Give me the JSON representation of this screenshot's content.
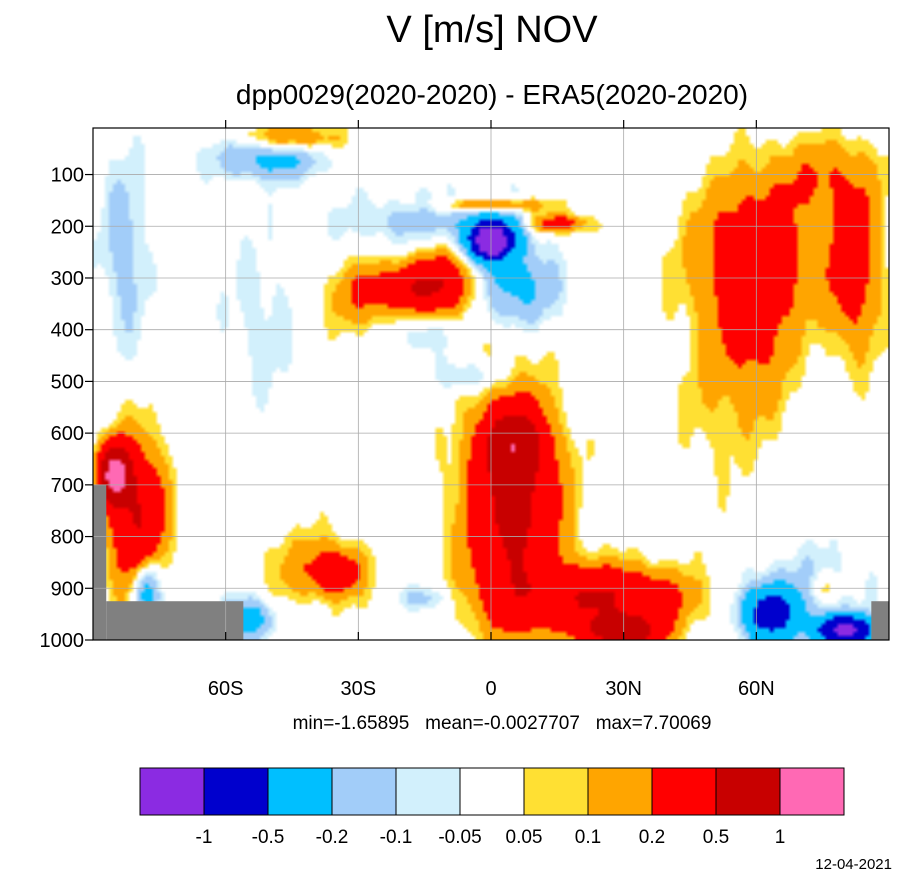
{
  "chart_data": {
    "type": "heatmap",
    "title": "V [m/s] NOV",
    "subtitle": "dpp0029(2020-2020) - ERA5(2020-2020)",
    "stats_text": "min=-1.65895   mean=-0.0027707   max=7.70069",
    "date_stamp": "12-04-2021",
    "x_tick_labels": [
      "60S",
      "30S",
      "0",
      "30N",
      "60N"
    ],
    "x_ticks": [
      -60,
      -30,
      0,
      30,
      60
    ],
    "y_tick_labels": [
      "100",
      "200",
      "300",
      "400",
      "500",
      "600",
      "700",
      "800",
      "900",
      "1000"
    ],
    "y_ticks": [
      100,
      200,
      300,
      400,
      500,
      600,
      700,
      800,
      900,
      1000
    ],
    "xlim": [
      -90,
      90
    ],
    "ylim": [
      1000,
      10
    ],
    "grid": true,
    "levels": [
      "-1",
      "-0.5",
      "-0.2",
      "-0.1",
      "-0.05",
      "0.05",
      "0.1",
      "0.2",
      "0.5",
      "1"
    ],
    "colors": [
      "#8b2be2",
      "#0000cd",
      "#00bfff",
      "#a2cdf9",
      "#d2f0fc",
      "#ffffff",
      "#ffe033",
      "#ffa500",
      "#ff0000",
      "#c80000",
      "#ff69b4"
    ],
    "missing_color": "#808080",
    "features": [
      {
        "kind": "blob",
        "lat": 0,
        "p": 220,
        "rlat": 8,
        "rp": 60,
        "v": -0.25
      },
      {
        "kind": "blob",
        "lat": 0,
        "p": 225,
        "rlat": 5,
        "rp": 35,
        "v": -0.7
      },
      {
        "kind": "blob",
        "lat": 0,
        "p": 230,
        "rlat": 3,
        "rp": 25,
        "v": -1.2
      },
      {
        "kind": "blob",
        "lat": 5,
        "p": 320,
        "rlat": 10,
        "rp": 70,
        "v": -0.25
      },
      {
        "kind": "blob",
        "lat": -15,
        "p": 190,
        "rlat": 18,
        "rp": 50,
        "v": -0.15
      },
      {
        "kind": "blob",
        "lat": -50,
        "p": 70,
        "rlat": 12,
        "rp": 40,
        "v": -0.25
      },
      {
        "kind": "blob",
        "lat": -83,
        "p": 250,
        "rlat": 5,
        "rp": 180,
        "v": -0.15
      },
      {
        "kind": "blob",
        "lat": -52,
        "p": 380,
        "rlat": 8,
        "rp": 160,
        "v": -0.08
      },
      {
        "kind": "blob",
        "lat": -5,
        "p": 490,
        "rlat": 7,
        "rp": 30,
        "v": -0.15
      },
      {
        "kind": "blob",
        "lat": -15,
        "p": 400,
        "rlat": 6,
        "rp": 45,
        "v": -0.12
      },
      {
        "kind": "blob",
        "lat": -17,
        "p": 320,
        "rlat": 10,
        "rp": 45,
        "v": 0.4
      },
      {
        "kind": "blob",
        "lat": -10,
        "p": 300,
        "rlat": 8,
        "rp": 80,
        "v": 0.25
      },
      {
        "kind": "blob",
        "lat": -30,
        "p": 340,
        "rlat": 7,
        "rp": 70,
        "v": 0.15
      },
      {
        "kind": "blob",
        "lat": 0,
        "p": 160,
        "rlat": 12,
        "rp": 15,
        "v": 0.3
      },
      {
        "kind": "blob",
        "lat": 15,
        "p": 195,
        "rlat": 7,
        "rp": 18,
        "v": 0.3
      },
      {
        "kind": "blob",
        "lat": -45,
        "p": 30,
        "rlat": 10,
        "rp": 25,
        "v": 0.25
      },
      {
        "kind": "blob",
        "lat": 60,
        "p": 250,
        "rlat": 14,
        "rp": 140,
        "v": 0.3
      },
      {
        "kind": "blob",
        "lat": 60,
        "p": 400,
        "rlat": 8,
        "rp": 180,
        "v": 0.2
      },
      {
        "kind": "blob",
        "lat": 82,
        "p": 280,
        "rlat": 6,
        "rp": 160,
        "v": 0.3
      },
      {
        "kind": "blob",
        "lat": 75,
        "p": 100,
        "rlat": 12,
        "rp": 70,
        "v": 0.15
      },
      {
        "kind": "blob",
        "lat": 50,
        "p": 500,
        "rlat": 8,
        "rp": 200,
        "v": 0.08
      },
      {
        "kind": "blob",
        "lat": 5,
        "p": 750,
        "rlat": 10,
        "rp": 200,
        "v": 0.6
      },
      {
        "kind": "blob",
        "lat": 5,
        "p": 620,
        "rlat": 6,
        "rp": 60,
        "v": 0.6
      },
      {
        "kind": "blob",
        "lat": 25,
        "p": 920,
        "rlat": 18,
        "rp": 60,
        "v": 0.5
      },
      {
        "kind": "blob",
        "lat": 30,
        "p": 985,
        "rlat": 8,
        "rp": 30,
        "v": 0.7
      },
      {
        "kind": "blob",
        "lat": -40,
        "p": 860,
        "rlat": 12,
        "rp": 70,
        "v": 0.15
      },
      {
        "kind": "blob",
        "lat": -35,
        "p": 870,
        "rlat": 5,
        "rp": 40,
        "v": 0.3
      },
      {
        "kind": "blob",
        "lat": -80,
        "p": 760,
        "rlat": 6,
        "rp": 140,
        "v": 0.5
      },
      {
        "kind": "blob",
        "lat": -85,
        "p": 680,
        "rlat": 3,
        "rp": 50,
        "v": 1.3
      },
      {
        "kind": "blob",
        "lat": -78,
        "p": 900,
        "rlat": 3,
        "rp": 60,
        "v": -0.4
      },
      {
        "kind": "blob",
        "lat": -15,
        "p": 920,
        "rlat": 5,
        "rp": 25,
        "v": -0.15
      },
      {
        "kind": "blob",
        "lat": 63,
        "p": 950,
        "rlat": 6,
        "rp": 50,
        "v": -0.7
      },
      {
        "kind": "blob",
        "lat": 80,
        "p": 980,
        "rlat": 6,
        "rp": 25,
        "v": -1.2
      },
      {
        "kind": "blob",
        "lat": 72,
        "p": 900,
        "rlat": 12,
        "rp": 80,
        "v": -0.12
      },
      {
        "kind": "blob",
        "lat": -55,
        "p": 960,
        "rlat": 6,
        "rp": 40,
        "v": -0.3
      },
      {
        "kind": "blob",
        "lat": 75,
        "p": 900,
        "rlat": 4,
        "rp": 30,
        "v": 0.15
      }
    ],
    "masks": [
      {
        "lat_min": -90,
        "lat_max": -87,
        "p_min": 700
      },
      {
        "lat_min": -87,
        "lat_max": -56,
        "p_min": 925
      },
      {
        "lat_min": 86,
        "lat_max": 90,
        "p_min": 925
      }
    ]
  }
}
